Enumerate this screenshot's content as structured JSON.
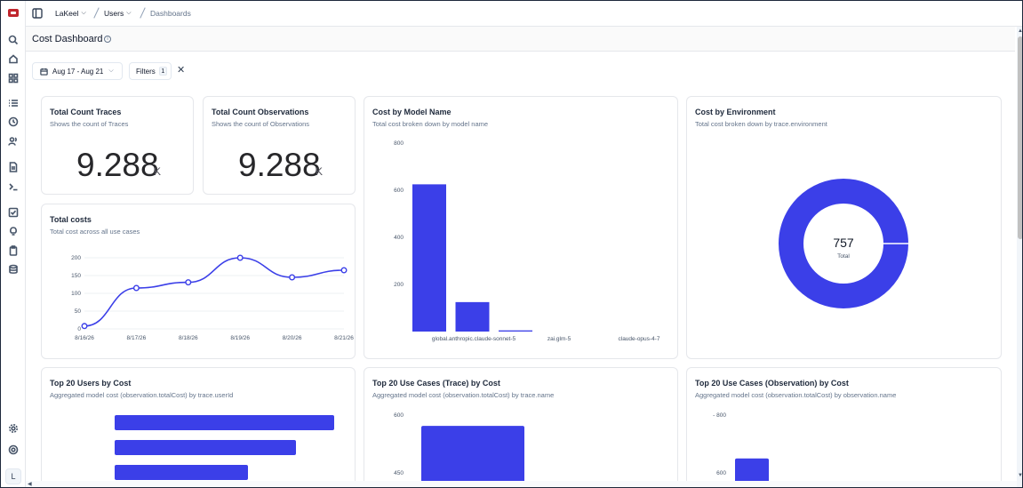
{
  "breadcrumb": {
    "org": "LaKeel",
    "project": "Users",
    "page": "Dashboards"
  },
  "header": {
    "title": "Cost Dashboard",
    "info_glyph": "i"
  },
  "toolbar": {
    "date_range": "Aug 17 - Aug 21",
    "filters_label": "Filters",
    "filters_count": "1",
    "clear_glyph": "✕"
  },
  "sidebar": {
    "avatar_initial": "L",
    "icons": [
      "search-icon",
      "home-icon",
      "dashboard-icon",
      "list-icon",
      "clock-icon",
      "users-icon",
      "file-icon",
      "terminal-icon",
      "checkbox-icon",
      "lightbulb-icon",
      "clipboard-icon",
      "database-icon",
      "settings-icon",
      "help-icon"
    ]
  },
  "cards": {
    "traces": {
      "title": "Total Count Traces",
      "subtitle": "Shows the count of Traces",
      "value": "9.288",
      "unit": "K"
    },
    "observations": {
      "title": "Total Count Observations",
      "subtitle": "Shows the count of Observations",
      "value": "9.288",
      "unit": "K"
    },
    "total_costs": {
      "title": "Total costs",
      "subtitle": "Total cost across all use cases"
    },
    "cost_by_model": {
      "title": "Cost by Model Name",
      "subtitle": "Total cost broken down by model name"
    },
    "cost_by_env": {
      "title": "Cost by Environment",
      "subtitle": "Total cost broken down by trace.environment",
      "center_value": "757",
      "center_label": "Total"
    },
    "top_users": {
      "title": "Top 20 Users by Cost",
      "subtitle": "Aggregated model cost (observation.totalCost) by trace.userId"
    },
    "top_usecases_trace": {
      "title": "Top 20 Use Cases (Trace) by Cost",
      "subtitle": "Aggregated model cost (observation.totalCost) by trace.name"
    },
    "top_usecases_obs": {
      "title": "Top 20 Use Cases (Observation) by Cost",
      "subtitle": "Aggregated model cost (observation.totalCost) by observation.name"
    }
  },
  "colors": {
    "accent": "#3b3fe8",
    "muted": "#64748b"
  },
  "chart_data": [
    {
      "id": "total_costs",
      "type": "line",
      "x": [
        "8/16/26",
        "8/17/26",
        "8/18/26",
        "8/19/26",
        "8/20/26",
        "8/21/26"
      ],
      "values": [
        8,
        115,
        131,
        200,
        145,
        165
      ],
      "yticks": [
        0,
        50,
        100,
        150,
        200
      ],
      "ylim": [
        0,
        220
      ],
      "grid": true
    },
    {
      "id": "cost_by_model",
      "type": "bar",
      "categories": [
        "global.anthropic.claude-sonnet-5",
        "",
        "zai.glm-5",
        "claude-opus-4-7"
      ],
      "values": [
        625,
        125,
        5,
        0
      ],
      "yticks": [
        200,
        400,
        600,
        800
      ],
      "ylim": [
        0,
        800
      ]
    },
    {
      "id": "cost_by_env",
      "type": "pie",
      "values": [
        757
      ],
      "total": 757
    },
    {
      "id": "top_users",
      "type": "bar",
      "orientation": "horizontal",
      "values": [
        247,
        204,
        150
      ]
    },
    {
      "id": "top_usecases_trace",
      "type": "bar",
      "yticks": [
        450,
        600
      ],
      "values": [
        572
      ]
    },
    {
      "id": "top_usecases_obs",
      "type": "bar",
      "yticks": [
        600,
        800
      ],
      "values": [
        650
      ]
    }
  ]
}
